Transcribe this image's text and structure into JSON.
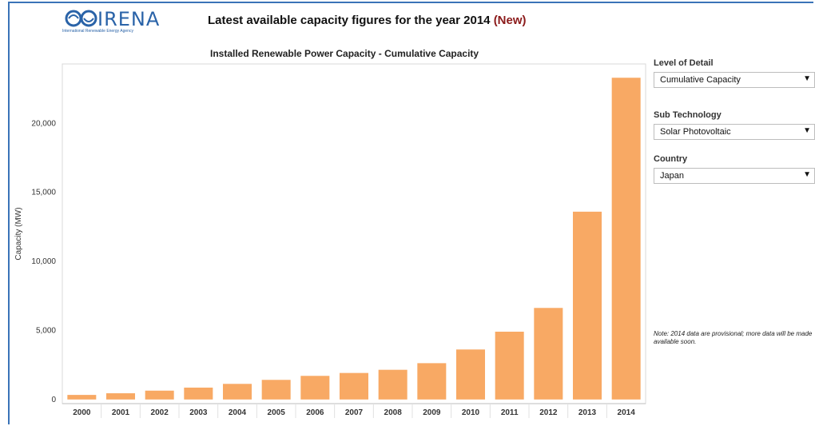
{
  "header": {
    "logo_text": "IRENA",
    "logo_subtext": "International Renewable Energy Agency",
    "title_main": "Latest available capacity figures for the year 2014",
    "title_badge": "(New)",
    "title_badge_color": "#8b1a1a"
  },
  "filters": {
    "level_label": "Level of Detail",
    "level_value": "Cumulative Capacity",
    "subtech_label": "Sub Technology",
    "subtech_value": "Solar Photovoltaic",
    "country_label": "Country",
    "country_value": "Japan"
  },
  "note": "Note: 2014 data are provisional; more data will be made available soon.",
  "chart_data": {
    "type": "bar",
    "title": "Installed Renewable Power Capacity - Cumulative Capacity",
    "xlabel": "",
    "ylabel": "Capacity (MW)",
    "categories": [
      "2000",
      "2001",
      "2002",
      "2003",
      "2004",
      "2005",
      "2006",
      "2007",
      "2008",
      "2009",
      "2010",
      "2011",
      "2012",
      "2013",
      "2014"
    ],
    "values": [
      330,
      450,
      640,
      860,
      1130,
      1420,
      1710,
      1920,
      2150,
      2630,
      3620,
      4910,
      6630,
      13600,
      23300
    ],
    "yticks": [
      {
        "value": 0,
        "label": "0"
      },
      {
        "value": 5000,
        "label": "5,000"
      },
      {
        "value": 10000,
        "label": "10,000"
      },
      {
        "value": 15000,
        "label": "15,000"
      },
      {
        "value": 20000,
        "label": "20,000"
      }
    ],
    "ylim": [
      -300,
      24300
    ],
    "bar_color": "#f8a964",
    "grid": false
  }
}
